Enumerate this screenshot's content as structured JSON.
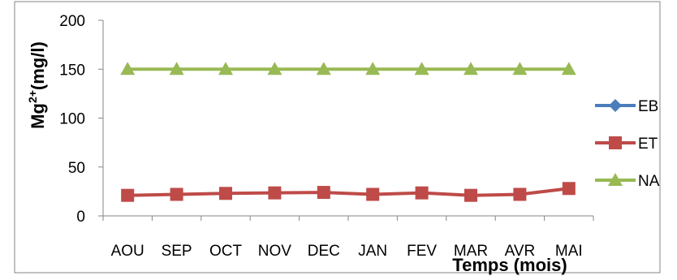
{
  "chart_data": {
    "type": "line",
    "xlabel": "Temps (mois)",
    "ylabel": {
      "base": "Mg",
      "superscript": "2+",
      "rest": "(mg/l)"
    },
    "categories": [
      "AOU",
      "SEP",
      "OCT",
      "NOV",
      "DEC",
      "JAN",
      "FEV",
      "MAR",
      "AVR",
      "MAI"
    ],
    "ylim": [
      0,
      200
    ],
    "yticks": [
      0,
      50,
      100,
      150,
      200
    ],
    "grid": false,
    "legend_position": "right",
    "series": [
      {
        "name": "EB",
        "color": "#4a7ebb",
        "marker": "diamond",
        "values": [
          null,
          null,
          null,
          null,
          null,
          null,
          null,
          null,
          null,
          null
        ]
      },
      {
        "name": "ET",
        "color": "#be4b48",
        "marker": "square",
        "values": [
          21,
          22,
          23,
          23.5,
          24,
          22,
          23.5,
          21,
          22,
          28
        ]
      },
      {
        "name": "NA",
        "color": "#98b954",
        "marker": "triangle",
        "values": [
          150,
          150,
          150,
          150,
          150,
          150,
          150,
          150,
          150,
          150
        ]
      }
    ]
  }
}
